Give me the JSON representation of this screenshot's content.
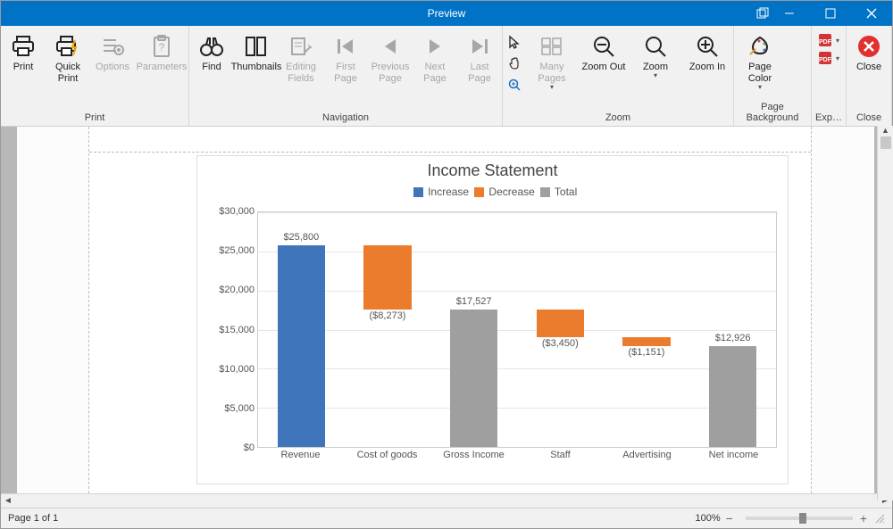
{
  "window": {
    "title": "Preview"
  },
  "ribbon": {
    "groups": [
      {
        "label": "Print",
        "items": [
          {
            "key": "print",
            "label": "Print",
            "icon": "printer",
            "enabled": true
          },
          {
            "key": "quickprint",
            "label": "Quick\nPrint",
            "icon": "printer-bolt",
            "enabled": true
          },
          {
            "key": "options",
            "label": "Options",
            "icon": "options",
            "enabled": false
          },
          {
            "key": "parameters",
            "label": "Parameters",
            "icon": "clipboard",
            "enabled": false
          }
        ]
      },
      {
        "label": "Navigation",
        "items": [
          {
            "key": "find",
            "label": "Find",
            "icon": "binoculars",
            "enabled": true
          },
          {
            "key": "thumbnails",
            "label": "Thumbnails",
            "icon": "thumbnails",
            "enabled": true
          },
          {
            "key": "editingfields",
            "label": "Editing\nFields",
            "icon": "editfields",
            "enabled": false
          },
          {
            "key": "firstpage",
            "label": "First\nPage",
            "icon": "first",
            "enabled": false
          },
          {
            "key": "prevpage",
            "label": "Previous\nPage",
            "icon": "prev",
            "enabled": false
          },
          {
            "key": "nextpage",
            "label": "Next\nPage",
            "icon": "next",
            "enabled": false
          },
          {
            "key": "lastpage",
            "label": "Last\nPage",
            "icon": "last",
            "enabled": false
          }
        ]
      },
      {
        "label": "Zoom",
        "items": [
          {
            "key": "_mousetools",
            "mini": true
          },
          {
            "key": "manypages",
            "label": "Many Pages",
            "icon": "manypages",
            "enabled": false,
            "dropdown": true
          },
          {
            "key": "zoomout",
            "label": "Zoom Out",
            "icon": "zoomout",
            "enabled": true
          },
          {
            "key": "zoom",
            "label": "Zoom",
            "icon": "zoom",
            "enabled": true,
            "dropdown": true
          },
          {
            "key": "zoomin",
            "label": "Zoom In",
            "icon": "zoomin",
            "enabled": true
          }
        ]
      },
      {
        "label": "Page Background",
        "items": [
          {
            "key": "pagecolor",
            "label": "Page Color",
            "icon": "pagecolor",
            "enabled": true,
            "dropdown": true
          }
        ]
      },
      {
        "label": "Exp…",
        "items": [
          {
            "key": "_export",
            "mini": true,
            "export": true
          }
        ]
      },
      {
        "label": "Close",
        "items": [
          {
            "key": "close",
            "label": "Close",
            "icon": "close-red",
            "enabled": true
          }
        ]
      }
    ]
  },
  "chart": {
    "title": "Income Statement",
    "legend": [
      {
        "label": "Increase",
        "color": "#3e75bb"
      },
      {
        "label": "Decrease",
        "color": "#eb7b2d"
      },
      {
        "label": "Total",
        "color": "#9f9f9f"
      }
    ],
    "y": {
      "min": 0,
      "max": 30000,
      "step": 5000,
      "format": "$#,###",
      "label_fontsize": 11
    },
    "categories": [
      "Revenue",
      "Cost of goods",
      "Gross Income",
      "Staff",
      "Advertising",
      "Net income"
    ],
    "bars": [
      {
        "from": 0,
        "to": 25800,
        "type": "increase",
        "label": "$25,800",
        "label_pos": "top"
      },
      {
        "from": 25800,
        "to": 17527,
        "type": "decrease",
        "label": "($8,273)",
        "label_pos": "bottom"
      },
      {
        "from": 0,
        "to": 17527,
        "type": "total",
        "label": "$17,527",
        "label_pos": "top"
      },
      {
        "from": 17527,
        "to": 14077,
        "type": "decrease",
        "label": "($3,450)",
        "label_pos": "bottom"
      },
      {
        "from": 14077,
        "to": 12926,
        "type": "decrease",
        "label": "($1,151)",
        "label_pos": "bottom"
      },
      {
        "from": 0,
        "to": 12926,
        "type": "total",
        "label": "$12,926",
        "label_pos": "top"
      }
    ],
    "colors": {
      "increase": "#3e75bb",
      "decrease": "#eb7b2d",
      "total": "#9f9f9f",
      "grid": "#e6e6e6",
      "border": "#cccccc",
      "text": "#555555"
    },
    "bar_width_ratio": 0.55,
    "title_fontsize": 18,
    "label_fontsize": 11,
    "background": "#ffffff"
  },
  "status": {
    "page_text": "Page 1 of 1",
    "zoom_text": "100%",
    "zoom_slider_pos": 0.5
  }
}
